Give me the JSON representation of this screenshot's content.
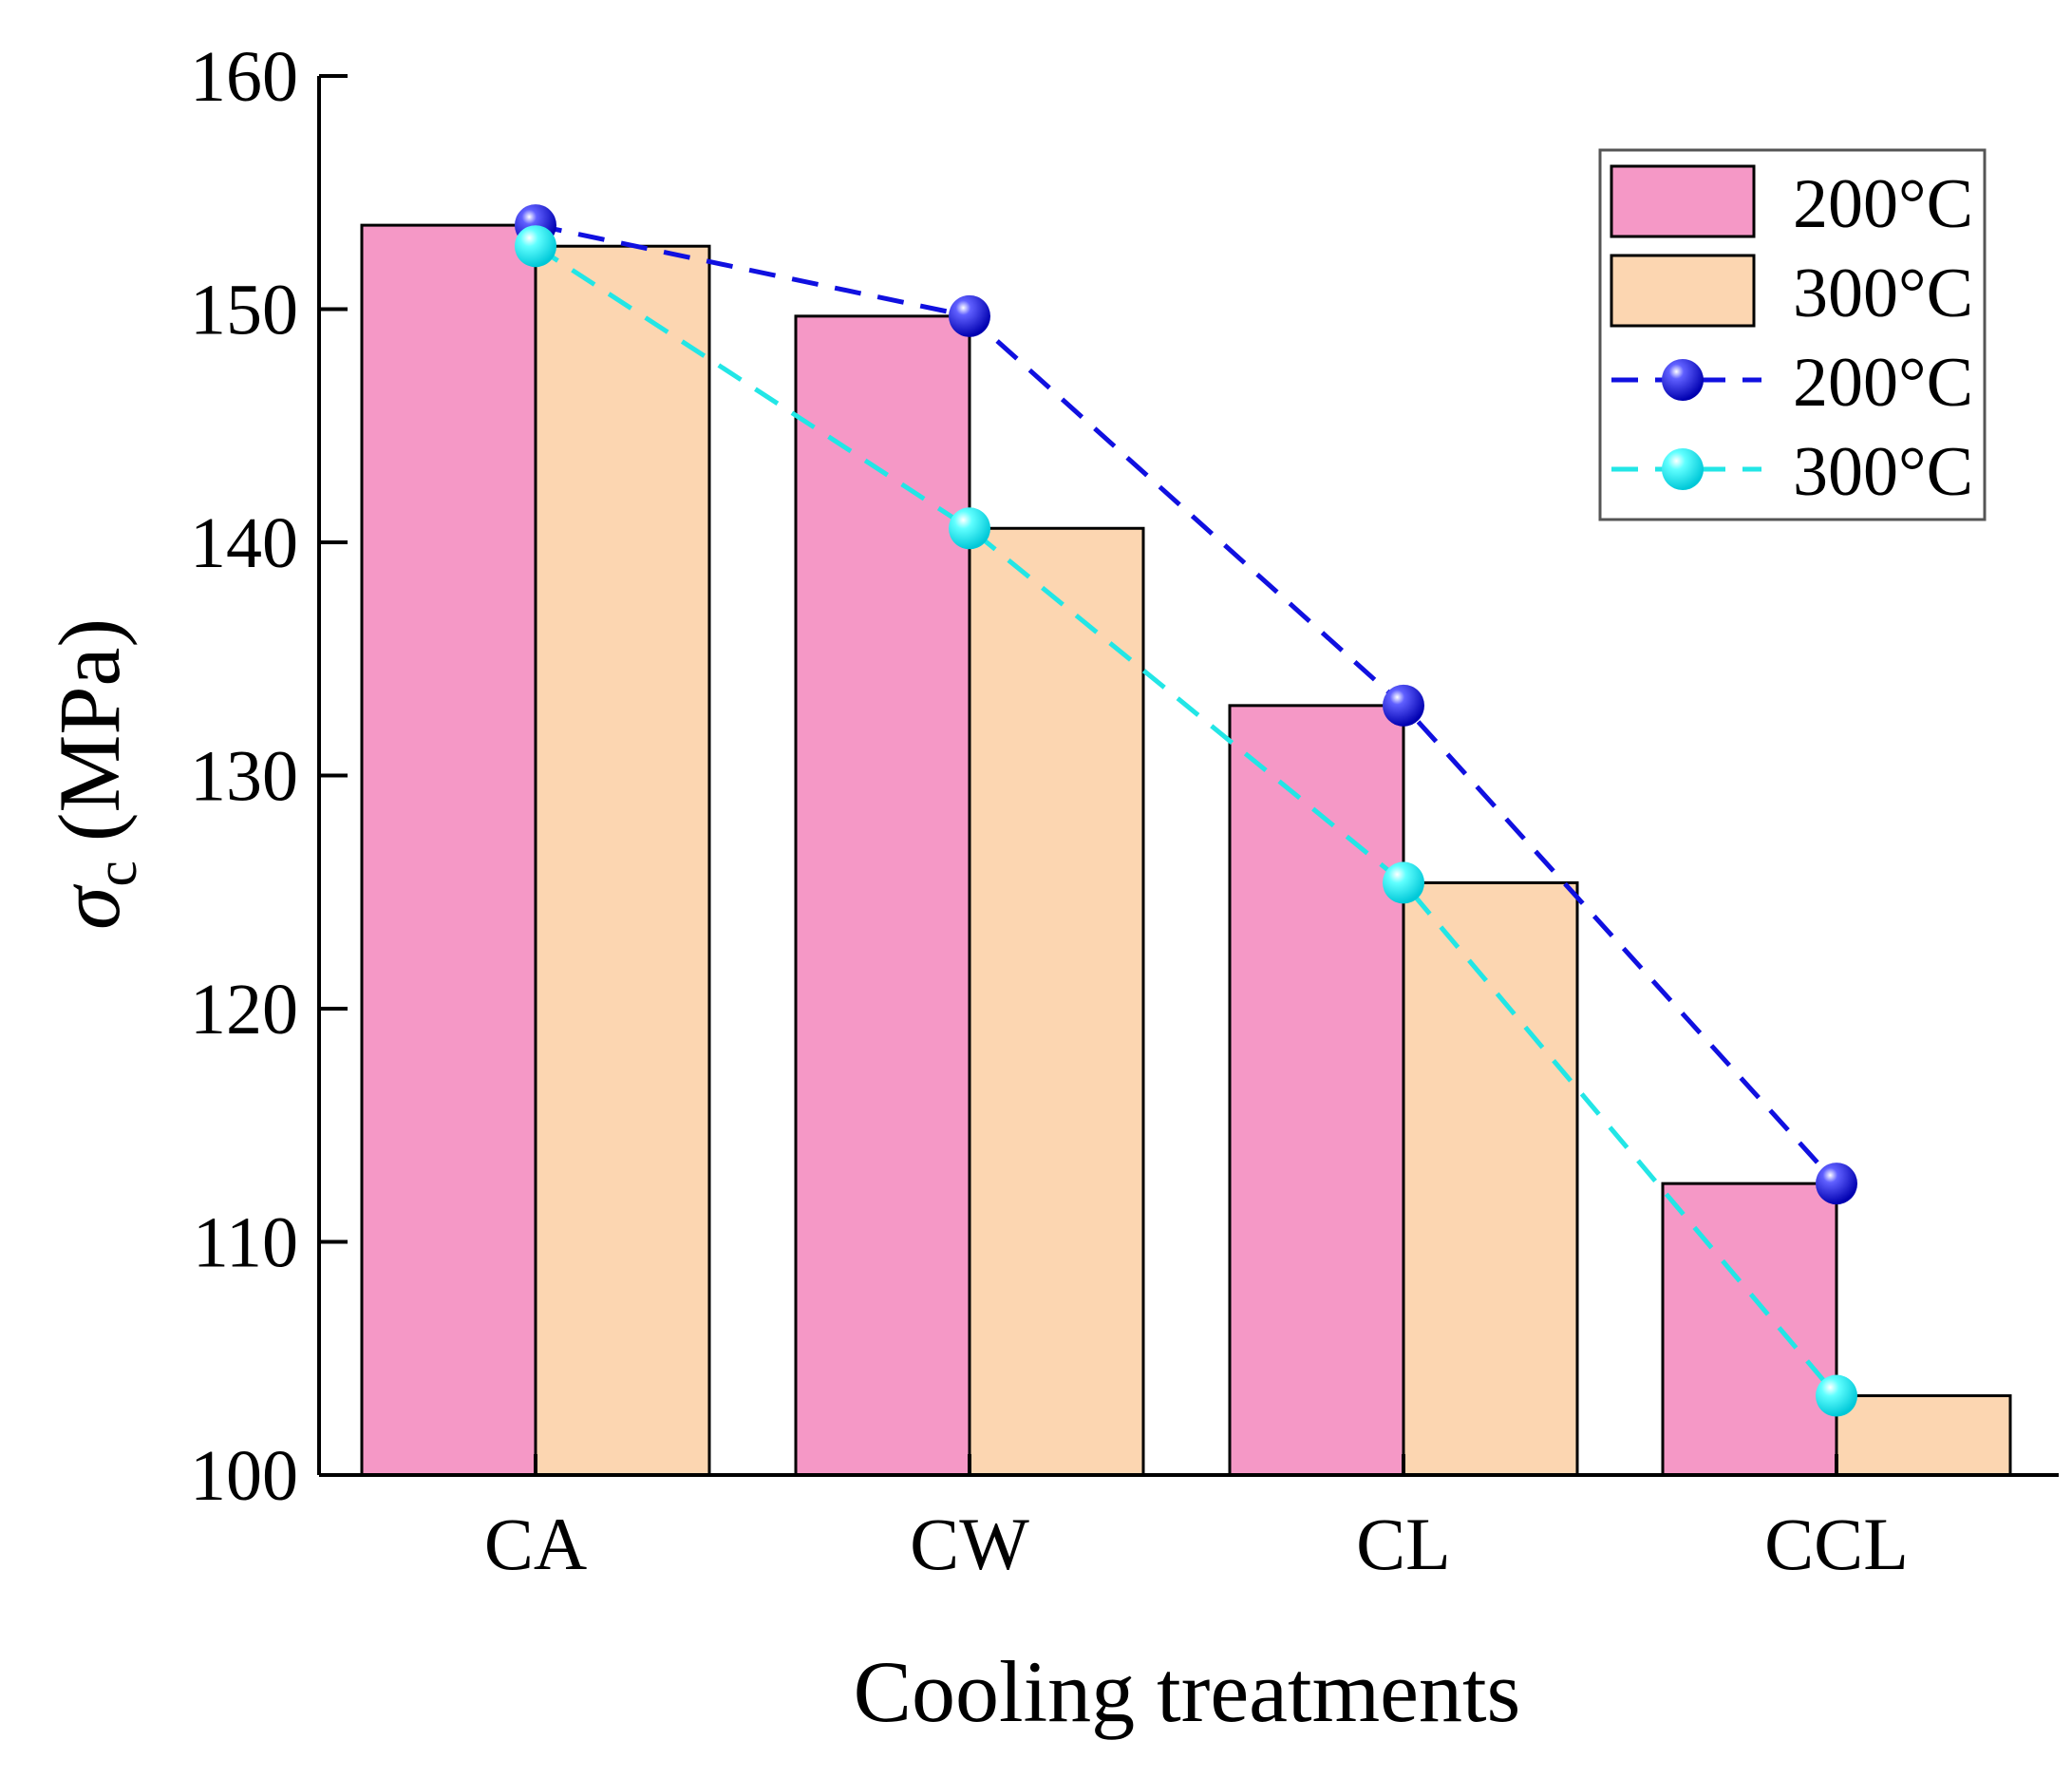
{
  "chart_data": {
    "type": "bar",
    "title": "",
    "xlabel": "Cooling treatments",
    "ylabel_symbol": "σ",
    "ylabel_subscript": "c",
    "ylabel_unit": "(MPa)",
    "categories": [
      "CA",
      "CW",
      "CL",
      "CCL"
    ],
    "ylim": [
      100,
      160
    ],
    "yticks": [
      "100",
      "110",
      "120",
      "130",
      "140",
      "150",
      "160"
    ],
    "series": [
      {
        "name": "200°C",
        "kind": "bar",
        "color": "#f598c6",
        "values": [
          153.6,
          149.7,
          133.0,
          112.5
        ]
      },
      {
        "name": "300°C",
        "kind": "bar",
        "color": "#fcd6b1",
        "values": [
          152.7,
          140.6,
          125.4,
          103.4
        ]
      },
      {
        "name": "200°C",
        "kind": "line",
        "color": "#1010e0",
        "values": [
          153.6,
          149.7,
          133.0,
          112.5
        ]
      },
      {
        "name": "300°C",
        "kind": "line",
        "color": "#22e6e6",
        "values": [
          152.7,
          140.6,
          125.4,
          103.4
        ]
      }
    ],
    "legend_position": "top-right",
    "grid": false
  }
}
